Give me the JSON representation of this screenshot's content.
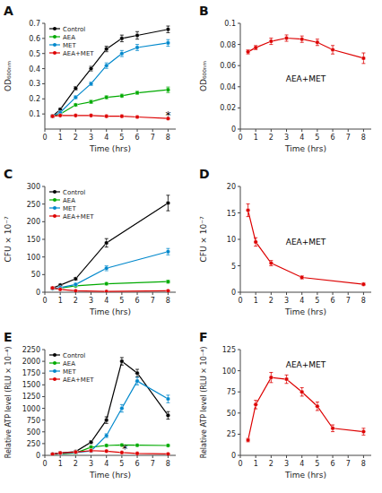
{
  "chart_data": [
    {
      "type": "line",
      "title": "A",
      "xlabel": "Time (hrs)",
      "ylabel": "OD₆₀₀ₙₘ",
      "x": [
        0.5,
        1,
        2,
        3,
        4,
        5,
        6,
        8
      ],
      "series": [
        {
          "name": "Control",
          "color": "#000000",
          "values": [
            0.085,
            0.13,
            0.27,
            0.4,
            0.53,
            0.6,
            0.62,
            0.66
          ],
          "errors": [
            0.005,
            0.008,
            0.012,
            0.015,
            0.018,
            0.022,
            0.025,
            0.022
          ]
        },
        {
          "name": "AEA",
          "color": "#00aa00",
          "values": [
            0.085,
            0.1,
            0.16,
            0.18,
            0.21,
            0.22,
            0.24,
            0.26
          ],
          "errors": [
            0.004,
            0.006,
            0.008,
            0.01,
            0.01,
            0.01,
            0.01,
            0.018
          ]
        },
        {
          "name": "MET",
          "color": "#0088cc",
          "values": [
            0.085,
            0.11,
            0.21,
            0.3,
            0.42,
            0.5,
            0.54,
            0.57
          ],
          "errors": [
            0.004,
            0.007,
            0.01,
            0.012,
            0.018,
            0.02,
            0.02,
            0.022
          ]
        },
        {
          "name": "AEA+MET",
          "color": "#dd0000",
          "values": [
            0.085,
            0.09,
            0.09,
            0.09,
            0.085,
            0.085,
            0.08,
            0.07
          ],
          "errors": [
            0.003,
            0.003,
            0.004,
            0.004,
            0.004,
            0.004,
            0.004,
            0.004
          ]
        }
      ],
      "xlim": [
        0,
        8.5
      ],
      "xticks": [
        0,
        1,
        2,
        3,
        4,
        5,
        6,
        7,
        8
      ],
      "ylim": [
        0,
        0.7
      ],
      "yticks": [
        0.1,
        0.2,
        0.3,
        0.4,
        0.5,
        0.6,
        0.7
      ],
      "marker": "circle",
      "line_style": "solid",
      "grid": false,
      "legend": "upper left",
      "annotations": [
        {
          "text": "*",
          "x": 8,
          "y": 0.065
        }
      ]
    },
    {
      "type": "line",
      "title": "B",
      "xlabel": "Time (hrs)",
      "ylabel": "OD₆₀₀ₙₘ",
      "x": [
        0.5,
        1,
        2,
        3,
        4,
        5,
        6,
        8
      ],
      "series": [
        {
          "color": "#dd0000",
          "values": [
            0.073,
            0.077,
            0.083,
            0.086,
            0.085,
            0.082,
            0.075,
            0.067
          ],
          "errors": [
            0.002,
            0.002,
            0.003,
            0.003,
            0.003,
            0.003,
            0.004,
            0.005
          ]
        }
      ],
      "xlim": [
        0,
        8.5
      ],
      "xticks": [
        0,
        1,
        2,
        3,
        4,
        5,
        6,
        7,
        8
      ],
      "ylim": [
        0,
        0.1
      ],
      "yticks": [
        0,
        0.02,
        0.04,
        0.06,
        0.08,
        0.1
      ],
      "marker": "circle",
      "line_style": "solid",
      "grid": false,
      "annotations": [
        {
          "text": "AEA+MET"
        }
      ]
    },
    {
      "type": "line",
      "title": "C",
      "xlabel": "Time (hrs)",
      "ylabel": "CFU × 10⁻⁷",
      "x": [
        0.5,
        1,
        2,
        4,
        8
      ],
      "series": [
        {
          "name": "Control",
          "color": "#000000",
          "values": [
            12,
            20,
            38,
            140,
            253
          ],
          "errors": [
            2,
            2,
            4,
            12,
            22
          ]
        },
        {
          "name": "AEA",
          "color": "#00aa00",
          "values": [
            10,
            12,
            18,
            24,
            30
          ],
          "errors": [
            1,
            1,
            2,
            3,
            4
          ]
        },
        {
          "name": "MET",
          "color": "#0088cc",
          "values": [
            10,
            13,
            22,
            68,
            115
          ],
          "errors": [
            1,
            1,
            3,
            7,
            9
          ]
        },
        {
          "name": "AEA+MET",
          "color": "#dd0000",
          "values": [
            12,
            8,
            4,
            2,
            4
          ],
          "errors": [
            1.5,
            1,
            0.8,
            0.5,
            0.8
          ]
        }
      ],
      "xlim": [
        0,
        8.5
      ],
      "xticks": [
        0,
        1,
        2,
        3,
        4,
        5,
        6,
        7,
        8
      ],
      "ylim": [
        0,
        300
      ],
      "yticks": [
        0,
        50,
        100,
        150,
        200,
        250,
        300
      ],
      "marker": "circle",
      "line_style": "solid",
      "grid": false,
      "legend": "upper left"
    },
    {
      "type": "line",
      "title": "D",
      "xlabel": "Time (hrs)",
      "ylabel": "CFU × 10⁻⁷",
      "x": [
        0.5,
        1,
        2,
        4,
        8
      ],
      "series": [
        {
          "color": "#dd0000",
          "values": [
            15.5,
            9.5,
            5.5,
            2.8,
            1.5
          ],
          "errors": [
            1.2,
            0.8,
            0.5,
            0.3,
            0.2
          ]
        }
      ],
      "xlim": [
        0,
        8.5
      ],
      "xticks": [
        0,
        1,
        2,
        3,
        4,
        5,
        6,
        7,
        8
      ],
      "ylim": [
        0,
        20
      ],
      "yticks": [
        0,
        5,
        10,
        15,
        20
      ],
      "marker": "circle",
      "line_style": "solid",
      "grid": false,
      "annotations": [
        {
          "text": "AEA+MET"
        }
      ]
    },
    {
      "type": "line",
      "title": "E",
      "xlabel": "Time (hrs)",
      "ylabel": "Relative ATP level (RLU × 10⁻⁴)",
      "x": [
        0.5,
        1,
        2,
        3,
        4,
        5,
        6,
        8
      ],
      "series": [
        {
          "name": "Control",
          "color": "#000000",
          "values": [
            30,
            50,
            80,
            280,
            750,
            2000,
            1750,
            850
          ],
          "errors": [
            5,
            8,
            12,
            30,
            70,
            80,
            80,
            80
          ]
        },
        {
          "name": "AEA",
          "color": "#00aa00",
          "values": [
            20,
            30,
            50,
            175,
            210,
            220,
            215,
            210
          ],
          "errors": [
            3,
            5,
            8,
            20,
            20,
            20,
            18,
            15
          ]
        },
        {
          "name": "MET",
          "color": "#0088cc",
          "values": [
            20,
            40,
            60,
            90,
            420,
            1000,
            1580,
            1200
          ],
          "errors": [
            3,
            6,
            10,
            15,
            40,
            80,
            80,
            80
          ]
        },
        {
          "name": "AEA+MET",
          "color": "#dd0000",
          "values": [
            25,
            50,
            70,
            100,
            90,
            60,
            40,
            30
          ],
          "errors": [
            4,
            7,
            8,
            12,
            10,
            8,
            6,
            5
          ]
        }
      ],
      "xlim": [
        0,
        8.5
      ],
      "xticks": [
        0,
        1,
        2,
        3,
        4,
        5,
        6,
        7,
        8
      ],
      "ylim": [
        0,
        2250
      ],
      "yticks": [
        0,
        250,
        500,
        750,
        1000,
        1250,
        1500,
        1750,
        2000,
        2250
      ],
      "marker": "circle",
      "line_style": "solid",
      "grid": false,
      "legend": "upper left",
      "annotations": [
        {
          "text": "*",
          "x": 5.2,
          "y": 50
        }
      ]
    },
    {
      "type": "line",
      "title": "F",
      "xlabel": "Time (hrs)",
      "ylabel": "Relative ATP level (RLU × 10⁻⁴)",
      "x": [
        0.5,
        1,
        2,
        3,
        4,
        5,
        6,
        8
      ],
      "series": [
        {
          "color": "#dd0000",
          "values": [
            18,
            60,
            92,
            90,
            75,
            58,
            32,
            28
          ],
          "errors": [
            2,
            5,
            6,
            5,
            5,
            5,
            4,
            4
          ]
        }
      ],
      "xlim": [
        0,
        8.5
      ],
      "xticks": [
        0,
        1,
        2,
        3,
        4,
        5,
        6,
        7,
        8
      ],
      "ylim": [
        0,
        125
      ],
      "yticks": [
        0,
        25,
        50,
        75,
        100,
        125
      ],
      "marker": "circle",
      "line_style": "solid",
      "grid": false,
      "annotations": [
        {
          "text": "AEA+MET"
        }
      ]
    }
  ]
}
